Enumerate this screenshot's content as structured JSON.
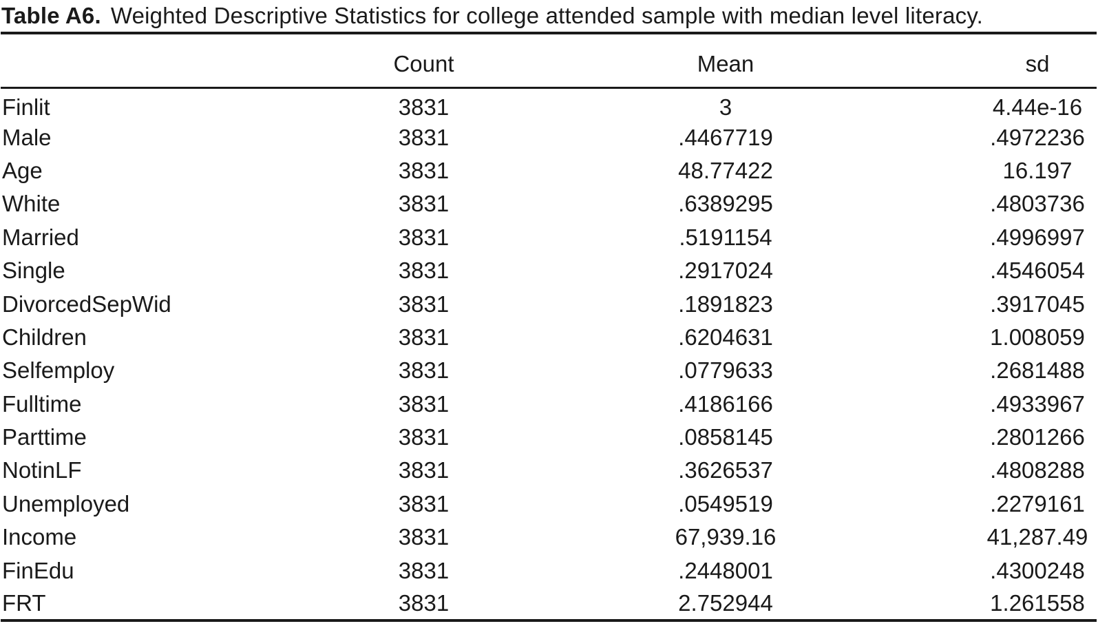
{
  "ink_color": "#1a1a1a",
  "title": {
    "label": "Table A6.",
    "text": "Weighted Descriptive Statistics for college attended sample with median level literacy."
  },
  "table": {
    "columns": [
      "",
      "Count",
      "Mean",
      "sd"
    ],
    "rows": [
      {
        "name": "Finlit",
        "count": "3831",
        "mean": "3",
        "sd": "4.44e-16"
      },
      {
        "name": "Male",
        "count": "3831",
        "mean": ".4467719",
        "sd": ".4972236"
      },
      {
        "name": "Age",
        "count": "3831",
        "mean": "48.77422",
        "sd": "16.197"
      },
      {
        "name": "White",
        "count": "3831",
        "mean": ".6389295",
        "sd": ".4803736"
      },
      {
        "name": "Married",
        "count": "3831",
        "mean": ".5191154",
        "sd": ".4996997"
      },
      {
        "name": "Single",
        "count": "3831",
        "mean": ".2917024",
        "sd": ".4546054"
      },
      {
        "name": "DivorcedSepWid",
        "count": "3831",
        "mean": ".1891823",
        "sd": ".3917045"
      },
      {
        "name": "Children",
        "count": "3831",
        "mean": ".6204631",
        "sd": "1.008059"
      },
      {
        "name": "Selfemploy",
        "count": "3831",
        "mean": ".0779633",
        "sd": ".2681488"
      },
      {
        "name": "Fulltime",
        "count": "3831",
        "mean": ".4186166",
        "sd": ".4933967"
      },
      {
        "name": "Parttime",
        "count": "3831",
        "mean": ".0858145",
        "sd": ".2801266"
      },
      {
        "name": "NotinLF",
        "count": "3831",
        "mean": ".3626537",
        "sd": ".4808288"
      },
      {
        "name": "Unemployed",
        "count": "3831",
        "mean": ".0549519",
        "sd": ".2279161"
      },
      {
        "name": "Income",
        "count": "3831",
        "mean": "67,939.16",
        "sd": "41,287.49"
      },
      {
        "name": "FinEdu",
        "count": "3831",
        "mean": ".2448001",
        "sd": ".4300248"
      },
      {
        "name": "FRT",
        "count": "3831",
        "mean": "2.752944",
        "sd": "1.261558"
      }
    ]
  }
}
